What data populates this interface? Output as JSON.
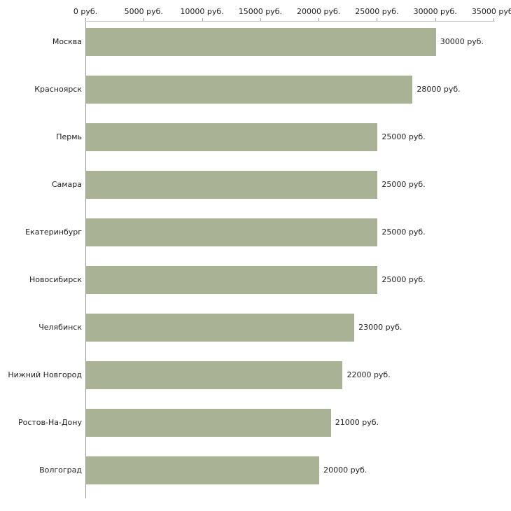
{
  "chart_data": {
    "type": "bar",
    "orientation": "horizontal",
    "title": "",
    "xlabel": "",
    "ylabel": "",
    "grid": false,
    "legend": "none",
    "categories": [
      "Москва",
      "Красноярск",
      "Пермь",
      "Самара",
      "Екатеринбург",
      "Новосибирск",
      "Челябинск",
      "Нижний Новгород",
      "Ростов-На-Дону",
      "Волгоград"
    ],
    "values": [
      30000,
      28000,
      25000,
      25000,
      25000,
      25000,
      23000,
      22000,
      21000,
      20000
    ],
    "value_labels": [
      "30000 руб.",
      "28000 руб.",
      "25000 руб.",
      "25000 руб.",
      "25000 руб.",
      "25000 руб.",
      "23000 руб.",
      "22000 руб.",
      "21000 руб.",
      "20000 руб."
    ],
    "x_ticks": [
      0,
      5000,
      10000,
      15000,
      20000,
      25000,
      30000,
      35000
    ],
    "x_tick_labels": [
      "0 руб.",
      "5000 руб.",
      "10000 руб.",
      "15000 руб.",
      "20000 руб.",
      "25000 руб.",
      "30000 руб.",
      "35000 руб."
    ],
    "xlim": [
      0,
      35000
    ],
    "unit": "руб.",
    "colors": {
      "bar": "#a9b294",
      "axis": "#9a9a9a",
      "tick_line": "#9a9a9a",
      "top_line": "#c8c8c8",
      "text": "#222222",
      "background": "#ffffff"
    }
  }
}
